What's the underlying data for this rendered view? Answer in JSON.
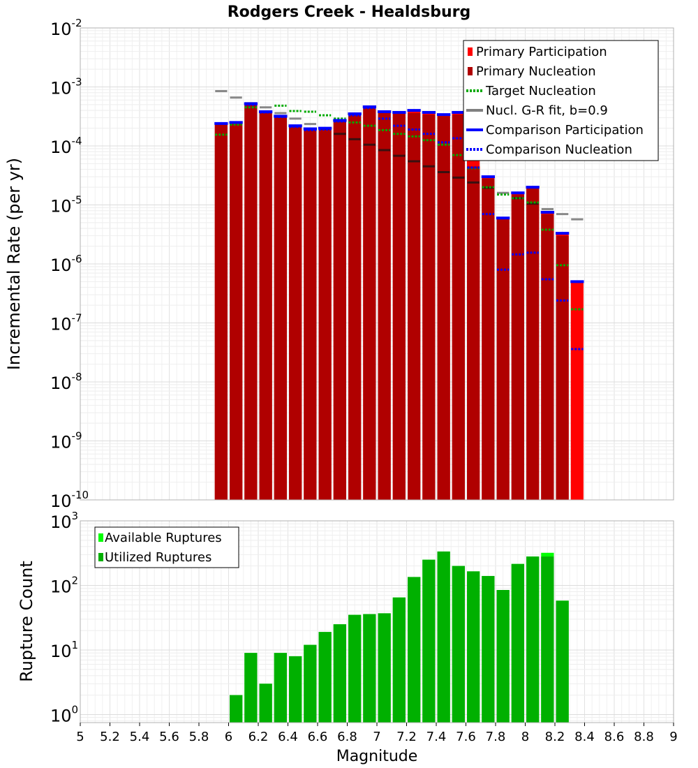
{
  "chart_data": [
    {
      "type": "bar",
      "title": "Rodgers Creek - Healdsburg",
      "xlabel": "",
      "ylabel": "Incremental Rate (per yr)",
      "yscale": "log",
      "xlim": [
        5,
        9
      ],
      "ylim": [
        1e-10,
        0.01
      ],
      "y_ticks": [
        {
          "base": "10",
          "exp": "-10",
          "value": 1e-10
        },
        {
          "base": "10",
          "exp": "-9",
          "value": 1e-09
        },
        {
          "base": "10",
          "exp": "-8",
          "value": 1e-08
        },
        {
          "base": "10",
          "exp": "-7",
          "value": 1e-07
        },
        {
          "base": "10",
          "exp": "-6",
          "value": 1e-06
        },
        {
          "base": "10",
          "exp": "-5",
          "value": 1e-05
        },
        {
          "base": "10",
          "exp": "-4",
          "value": 0.0001
        },
        {
          "base": "10",
          "exp": "-3",
          "value": 0.001
        },
        {
          "base": "10",
          "exp": "-2",
          "value": 0.01
        }
      ],
      "grid": true,
      "legend_position": "top-right",
      "legend": [
        {
          "label": "Primary Participation",
          "color": "#ff0000",
          "style": "bar"
        },
        {
          "label": "Primary Nucleation",
          "color": "#b00000",
          "style": "bar"
        },
        {
          "label": "Target Nucleation",
          "color": "#00aa00",
          "style": "dotted"
        },
        {
          "label": "Nucl. G-R fit, b=0.9",
          "color": "#808080",
          "style": "solid"
        },
        {
          "label": "Comparison Participation",
          "color": "#0000ff",
          "style": "solid"
        },
        {
          "label": "Comparison Nucleation",
          "color": "#0000ff",
          "style": "dotted"
        }
      ],
      "x": [
        5.95,
        6.05,
        6.15,
        6.25,
        6.35,
        6.45,
        6.55,
        6.65,
        6.75,
        6.85,
        6.95,
        7.05,
        7.15,
        7.25,
        7.35,
        7.45,
        7.55,
        7.65,
        7.75,
        7.85,
        7.95,
        8.05,
        8.15,
        8.25,
        8.35
      ],
      "series": [
        {
          "name": "Primary Participation",
          "values": [
            0.00024,
            0.00025,
            0.00052,
            0.00038,
            0.00032,
            0.00022,
            0.000195,
            0.0002,
            0.00027,
            0.00035,
            0.00046,
            0.00038,
            0.00037,
            0.0004,
            0.00037,
            0.00034,
            0.00037,
            0.00016,
            3e-05,
            6e-06,
            1.6e-05,
            2e-05,
            7.5e-06,
            3.3e-06,
            5e-07
          ]
        },
        {
          "name": "Primary Nucleation",
          "values": [
            0.00024,
            0.00025,
            0.00052,
            0.00038,
            0.00032,
            0.00022,
            0.000195,
            0.0002,
            0.00027,
            0.00035,
            0.00046,
            0.00038,
            0.00037,
            0.00036,
            0.00034,
            0.00032,
            0.00034,
            4.5e-05,
            2.8e-05,
            6e-06,
            1.5e-05,
            2e-05,
            7e-06,
            3e-06,
            1e-10
          ]
        },
        {
          "name": "Target Nucleation",
          "values": [
            0.000155,
            0.00023,
            0.00045,
            0.00038,
            0.00048,
            0.00039,
            0.00038,
            0.00033,
            0.00029,
            0.00025,
            0.00022,
            0.000185,
            0.00016,
            0.000145,
            0.000125,
            0.000105,
            7e-05,
            4.2e-05,
            2e-05,
            1.5e-05,
            1.3e-05,
            1.1e-05,
            3.8e-06,
            9.5e-07,
            1.7e-07
          ]
        },
        {
          "name": "Nucl. G-R fit, b=0.9",
          "values": [
            0.00085,
            0.00066,
            0.00053,
            0.00045,
            0.00036,
            0.00029,
            0.000235,
            0.000195,
            0.00016,
            0.00013,
            0.000105,
            8.5e-05,
            6.8e-05,
            5.5e-05,
            4.5e-05,
            3.6e-05,
            2.9e-05,
            2.4e-05,
            1.95e-05,
            1.6e-05,
            1.3e-05,
            1.05e-05,
            8.5e-06,
            7e-06,
            5.7e-06
          ]
        },
        {
          "name": "Comparison Participation",
          "values": [
            0.00024,
            0.00025,
            0.00052,
            0.00038,
            0.00032,
            0.00022,
            0.000195,
            0.0002,
            0.00027,
            0.00035,
            0.00046,
            0.00038,
            0.00037,
            0.0004,
            0.00037,
            0.00034,
            0.00037,
            0.00016,
            3e-05,
            6e-06,
            1.6e-05,
            2e-05,
            7.5e-06,
            3.3e-06,
            5e-07
          ]
        },
        {
          "name": "Comparison Nucleation",
          "values": [
            0.00024,
            0.00025,
            0.0005,
            0.00037,
            0.00031,
            0.00021,
            0.000185,
            0.00019,
            0.00026,
            0.00033,
            0.00044,
            0.00029,
            0.00022,
            0.00019,
            0.00016,
            0.000115,
            0.000135,
            4.3e-05,
            7e-06,
            8e-07,
            1.45e-06,
            1.55e-06,
            5.5e-07,
            2.4e-07,
            3.6e-08
          ]
        }
      ]
    },
    {
      "type": "bar",
      "title": "",
      "xlabel": "Magnitude",
      "ylabel": "Rupture Count",
      "yscale": "log",
      "xlim": [
        5,
        9
      ],
      "ylim": [
        0.75,
        1000
      ],
      "x_ticks": [
        "5",
        "5.2",
        "5.4",
        "5.6",
        "5.8",
        "6",
        "6.2",
        "6.4",
        "6.6",
        "6.8",
        "7",
        "7.2",
        "7.4",
        "7.6",
        "7.8",
        "8",
        "8.2",
        "8.4",
        "8.6",
        "8.8",
        "9"
      ],
      "y_ticks": [
        {
          "base": "10",
          "exp": "0",
          "value": 1
        },
        {
          "base": "10",
          "exp": "1",
          "value": 10
        },
        {
          "base": "10",
          "exp": "2",
          "value": 100
        },
        {
          "base": "10",
          "exp": "3",
          "value": 1000
        }
      ],
      "grid": true,
      "legend_position": "top-left",
      "legend": [
        {
          "label": "Available Ruptures",
          "color": "#00ff00"
        },
        {
          "label": "Utilized Ruptures",
          "color": "#00b000"
        }
      ],
      "x": [
        6.05,
        6.15,
        6.25,
        6.35,
        6.45,
        6.55,
        6.65,
        6.75,
        6.85,
        6.95,
        7.05,
        7.15,
        7.25,
        7.35,
        7.45,
        7.55,
        7.65,
        7.75,
        7.85,
        7.95,
        8.05,
        8.15,
        8.25
      ],
      "series": [
        {
          "name": "Available Ruptures",
          "values": [
            2,
            9,
            3,
            9,
            8,
            12,
            19,
            25,
            35,
            36,
            37,
            65,
            135,
            250,
            335,
            200,
            165,
            140,
            85,
            215,
            280,
            320,
            58
          ]
        },
        {
          "name": "Utilized Ruptures",
          "values": [
            2,
            9,
            3,
            9,
            8,
            12,
            19,
            25,
            35,
            36,
            37,
            65,
            135,
            250,
            335,
            200,
            165,
            140,
            85,
            215,
            280,
            280,
            58
          ]
        }
      ]
    }
  ]
}
